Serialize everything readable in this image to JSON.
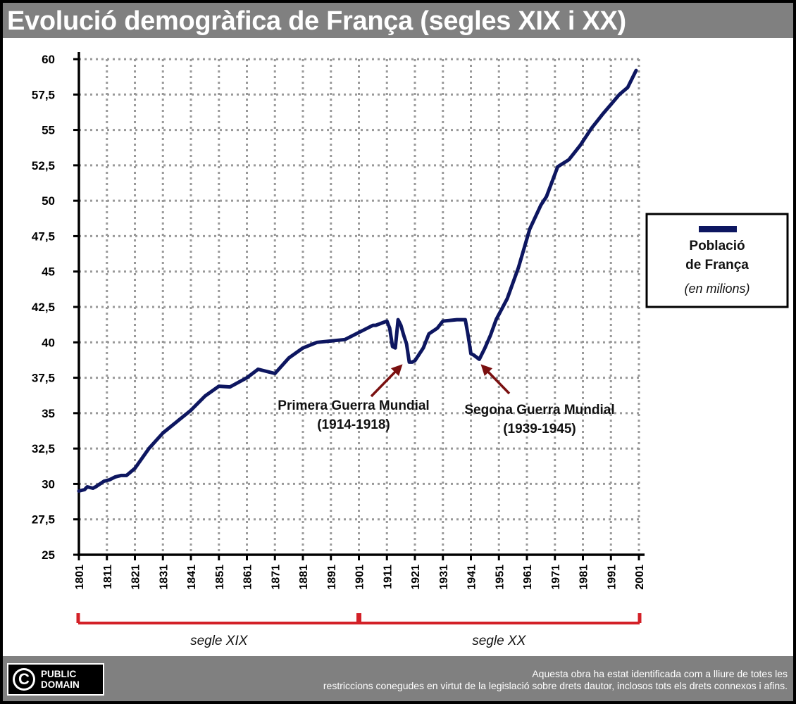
{
  "title": "Evolució demogràfica de França (segles XIX i XX)",
  "colors": {
    "line": "#0d1660",
    "arrow": "#7a1010",
    "bracket": "#d32027",
    "header": "#808080",
    "grid": "#999999"
  },
  "legend": {
    "line1": "Població",
    "line2": "de França",
    "unit": "(en milions)"
  },
  "annotations": [
    {
      "label": "Primera Guerra Mundial",
      "years": "(1914-1918)"
    },
    {
      "label": "Segona Guerra Mundial",
      "years": "(1939-1945)"
    }
  ],
  "centuries": [
    {
      "label": "segle XIX",
      "from": 1801,
      "to": 1901
    },
    {
      "label": "segle XX",
      "from": 1901,
      "to": 2001
    }
  ],
  "footer": {
    "badge_line1": "PUBLIC",
    "badge_line2": "DOMAIN",
    "license_line1": "Aquesta obra ha estat identificada com a lliure de totes les",
    "license_line2": "restriccions conegudes en virtut de la legislació sobre drets dautor, inclosos tots els drets connexos i afins."
  },
  "chart_data": {
    "type": "line",
    "title": "Evolució demogràfica de França (segles XIX i XX)",
    "xlabel": "",
    "ylabel": "",
    "xlim": [
      1801,
      2001
    ],
    "ylim": [
      25,
      60
    ],
    "grid": true,
    "legend_position": "right",
    "x_ticks": [
      1801,
      1811,
      1821,
      1831,
      1841,
      1851,
      1861,
      1871,
      1881,
      1891,
      1901,
      1911,
      1921,
      1931,
      1941,
      1951,
      1961,
      1971,
      1981,
      1991,
      2001
    ],
    "y_ticks": [
      "25",
      "27,5",
      "30",
      "32,5",
      "35",
      "37,5",
      "40",
      "42,5",
      "45",
      "47,5",
      "50",
      "52,5",
      "55",
      "57,5",
      "60"
    ],
    "y_tick_values": [
      25,
      27.5,
      30,
      32.5,
      35,
      37.5,
      40,
      42.5,
      45,
      47.5,
      50,
      52.5,
      55,
      57.5,
      60
    ],
    "series": [
      {
        "name": "Població de França",
        "x": [
          1801,
          1803,
          1804,
          1806,
          1807,
          1810,
          1812,
          1814,
          1816,
          1818,
          1821,
          1826,
          1831,
          1836,
          1841,
          1846,
          1851,
          1855,
          1861,
          1865,
          1871,
          1876,
          1881,
          1886,
          1891,
          1896,
          1901,
          1904,
          1906,
          1907,
          1911,
          1912,
          1913,
          1914,
          1915,
          1916,
          1917,
          1918,
          1919,
          1920,
          1921,
          1924,
          1926,
          1929,
          1931,
          1936,
          1939,
          1940,
          1941,
          1942,
          1944,
          1946,
          1948,
          1950,
          1954,
          1958,
          1962,
          1966,
          1968,
          1972,
          1976,
          1980,
          1984,
          1988,
          1991,
          1994,
          1997,
          2000
        ],
        "y": [
          29.5,
          29.6,
          29.8,
          29.7,
          29.8,
          30.2,
          30.3,
          30.5,
          30.6,
          30.6,
          31.1,
          32.5,
          33.6,
          34.4,
          35.2,
          36.2,
          36.9,
          36.85,
          37.5,
          38.1,
          37.8,
          38.9,
          39.6,
          40.0,
          40.1,
          40.2,
          40.7,
          41.0,
          41.2,
          41.2,
          41.5,
          41.0,
          39.7,
          39.6,
          41.6,
          41.2,
          40.5,
          39.9,
          38.6,
          38.6,
          38.7,
          39.6,
          40.6,
          41.0,
          41.5,
          41.6,
          41.6,
          40.5,
          39.2,
          39.1,
          38.8,
          39.6,
          40.5,
          41.6,
          43.1,
          45.3,
          48.0,
          49.7,
          50.3,
          52.4,
          52.9,
          53.9,
          55.1,
          56.1,
          56.8,
          57.5,
          58.0,
          59.2
        ]
      }
    ]
  }
}
